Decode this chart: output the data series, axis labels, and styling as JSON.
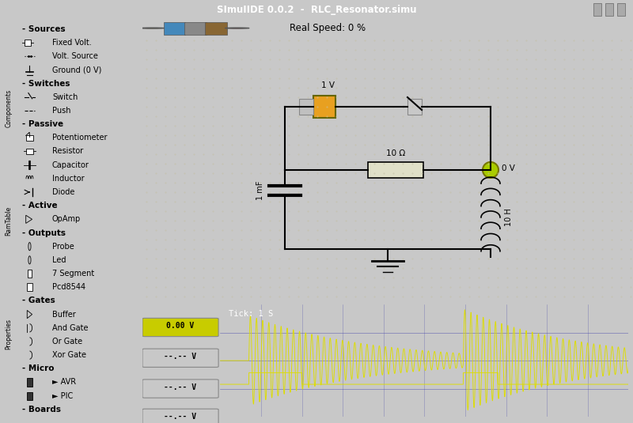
{
  "title": "SImuIIDE 0.0.2  -  RLC_Resonator.simu",
  "bg_window": "#c8c8c8",
  "bg_left_panel": "#d4d0c8",
  "bg_circuit": "#f0ede0",
  "bg_scope": "#000035",
  "scope_line_color": "#dddd00",
  "scope_tick_label": "Tick: 1 S",
  "toolbar_text": "Real Speed: 0 %",
  "circuit_labels": {
    "voltage_source": "1 V",
    "resistor": "10 Ω",
    "capacitor": "1 mF",
    "inductor": "10 H",
    "probe": "0 V"
  },
  "scope_volt_labels": [
    "0.00 V",
    "--.-- V",
    "--.-- V",
    "--.-- V"
  ],
  "panel_items": [
    [
      "- Sources",
      true
    ],
    [
      "    Fixed Volt.",
      false
    ],
    [
      "    Volt. Source",
      false
    ],
    [
      "    Ground (0 V)",
      false
    ],
    [
      "- Switches",
      true
    ],
    [
      "    Switch",
      false
    ],
    [
      "    Push",
      false
    ],
    [
      "- Passive",
      true
    ],
    [
      "    Potentiometer",
      false
    ],
    [
      "    Resistor",
      false
    ],
    [
      "    Capacitor",
      false
    ],
    [
      "    Inductor",
      false
    ],
    [
      "    Diode",
      false
    ],
    [
      "- Active",
      true
    ],
    [
      "    OpAmp",
      false
    ],
    [
      "- Outputs",
      true
    ],
    [
      "    Probe",
      false
    ],
    [
      "    Led",
      false
    ],
    [
      "    7 Segment",
      false
    ],
    [
      "    Pcd8544",
      false
    ],
    [
      "- Gates",
      true
    ],
    [
      "    Buffer",
      false
    ],
    [
      "    And Gate",
      false
    ],
    [
      "    Or Gate",
      false
    ],
    [
      "    Xor Gate",
      false
    ],
    [
      "- Micro",
      true
    ],
    [
      "    ► AVR",
      false
    ],
    [
      "    ► PIC",
      false
    ],
    [
      "- Boards",
      true
    ]
  ]
}
